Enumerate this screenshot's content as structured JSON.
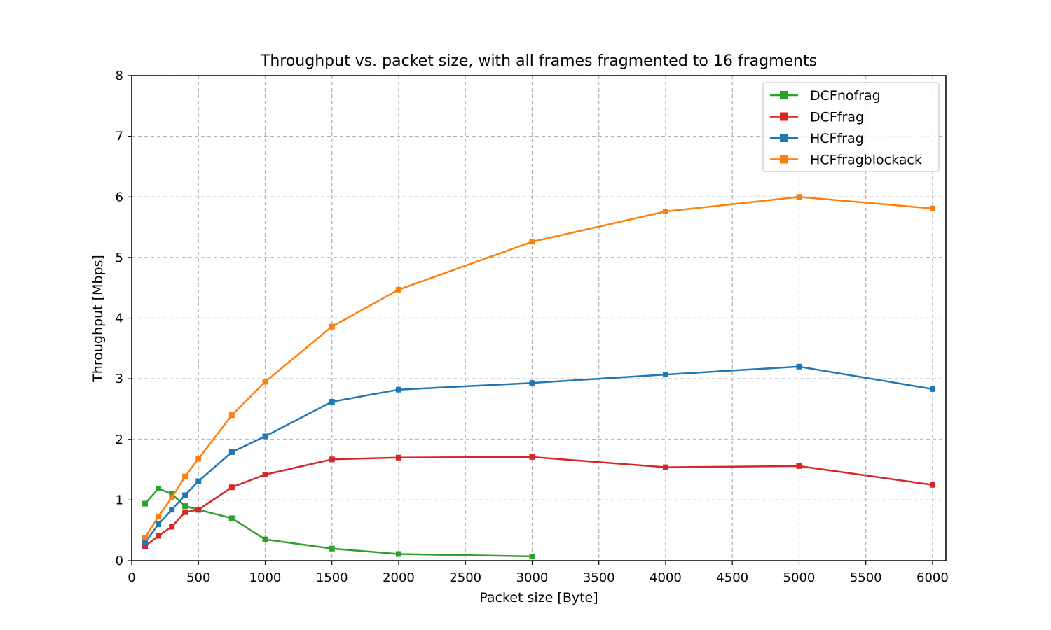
{
  "chart_data": {
    "type": "line",
    "title": "Throughput vs. packet size, with all frames fragmented to 16 fragments",
    "xlabel": "Packet size [Byte]",
    "ylabel": "Throughput [Mbps]",
    "xlim": [
      0,
      6100
    ],
    "ylim": [
      0,
      8
    ],
    "xticks": [
      0,
      500,
      1000,
      1500,
      2000,
      2500,
      3000,
      3500,
      4000,
      4500,
      5000,
      5500,
      6000
    ],
    "yticks": [
      0,
      1,
      2,
      3,
      4,
      5,
      6,
      7,
      8
    ],
    "grid": true,
    "legend_position": "top-right",
    "series": [
      {
        "name": "DCFnofrag",
        "color": "#2ca02c",
        "x": [
          100,
          200,
          300,
          400,
          500,
          750,
          1000,
          1500,
          2000,
          3000
        ],
        "y": [
          0.94,
          1.19,
          1.1,
          0.9,
          0.84,
          0.7,
          0.35,
          0.2,
          0.11,
          0.07
        ]
      },
      {
        "name": "DCFfrag",
        "color": "#d62728",
        "x": [
          100,
          200,
          300,
          400,
          500,
          750,
          1000,
          1500,
          2000,
          3000,
          4000,
          5000,
          6000
        ],
        "y": [
          0.24,
          0.41,
          0.56,
          0.8,
          0.84,
          1.21,
          1.42,
          1.67,
          1.7,
          1.71,
          1.54,
          1.56,
          1.25
        ]
      },
      {
        "name": "HCFfrag",
        "color": "#1f77b4",
        "x": [
          100,
          200,
          300,
          400,
          500,
          750,
          1000,
          1500,
          2000,
          3000,
          4000,
          5000,
          6000
        ],
        "y": [
          0.3,
          0.6,
          0.84,
          1.08,
          1.31,
          1.79,
          2.05,
          2.62,
          2.82,
          2.93,
          3.07,
          3.2,
          2.83
        ]
      },
      {
        "name": "HCFfragblockack",
        "color": "#ff7f0e",
        "x": [
          100,
          200,
          300,
          400,
          500,
          750,
          1000,
          1500,
          2000,
          3000,
          4000,
          5000,
          6000
        ],
        "y": [
          0.38,
          0.73,
          1.04,
          1.39,
          1.68,
          2.4,
          2.95,
          3.86,
          4.47,
          5.26,
          5.76,
          6.0,
          5.81
        ]
      }
    ]
  }
}
